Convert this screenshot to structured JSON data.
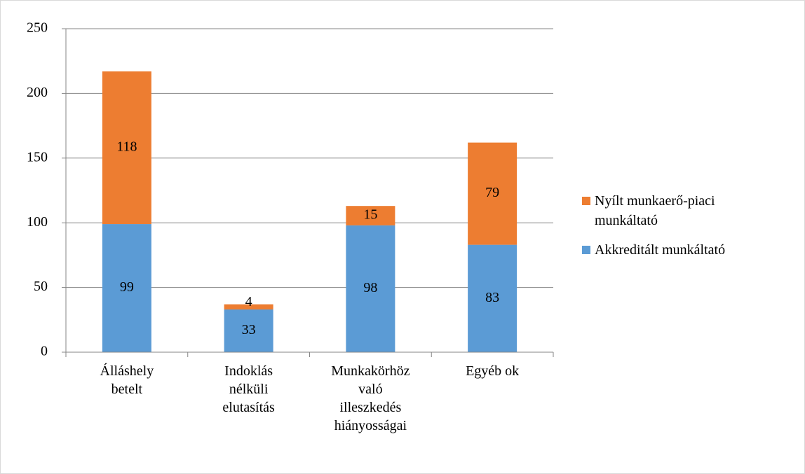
{
  "chart_data": {
    "type": "stacked_bar",
    "categories": [
      "Álláshely betelt",
      "Indoklás nélküli elutasítás",
      "Munkakörhöz való illeszkedés hiányosságai",
      "Egyéb ok"
    ],
    "series": [
      {
        "name": "Akkreditált munkáltató",
        "color": "#5b9bd5",
        "values": [
          99,
          33,
          98,
          83
        ]
      },
      {
        "name": "Nyílt munkaerő-piaci munkáltató",
        "color": "#ed7d31",
        "values": [
          118,
          4,
          15,
          79
        ]
      }
    ],
    "ylim": [
      0,
      250
    ],
    "yticks": [
      0,
      50,
      100,
      150,
      200,
      250
    ],
    "grid": true,
    "legend": "right"
  }
}
